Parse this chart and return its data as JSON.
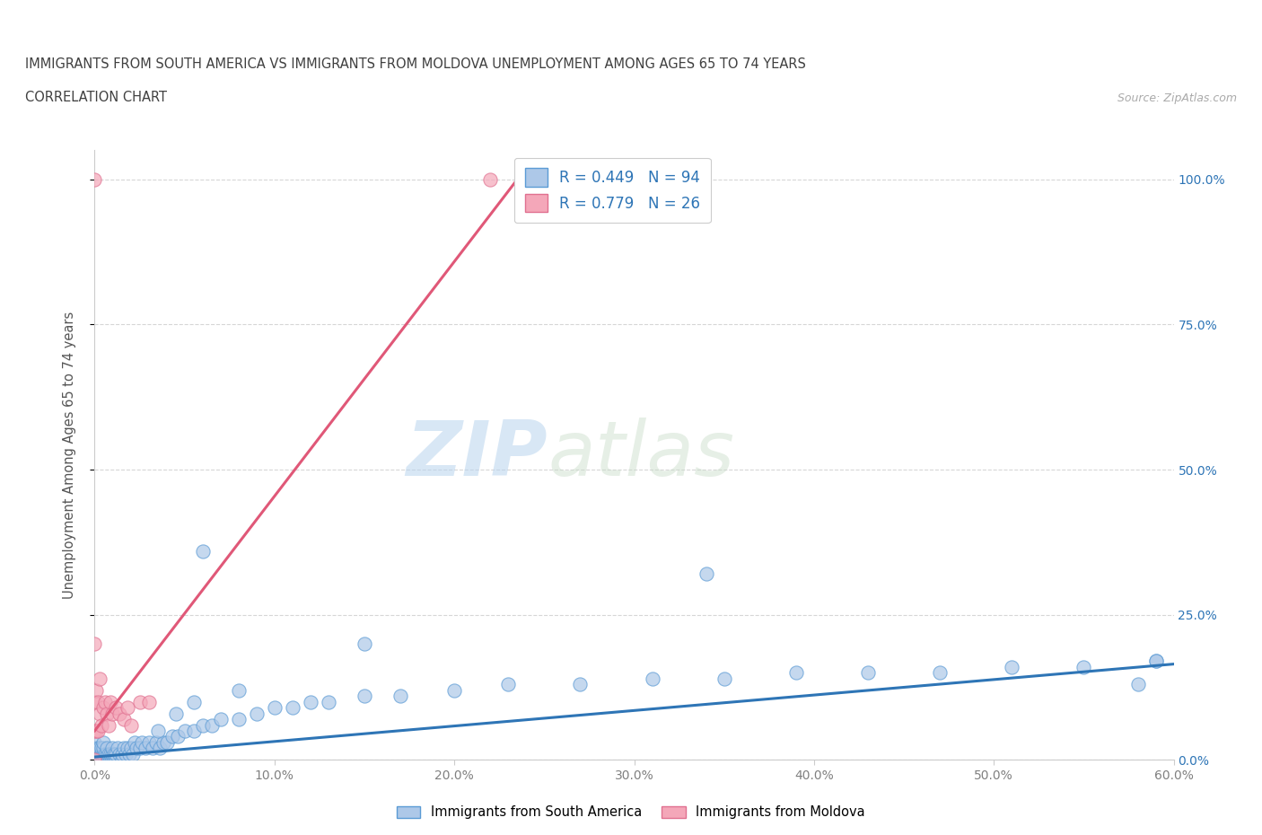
{
  "title_line1": "IMMIGRANTS FROM SOUTH AMERICA VS IMMIGRANTS FROM MOLDOVA UNEMPLOYMENT AMONG AGES 65 TO 74 YEARS",
  "title_line2": "CORRELATION CHART",
  "source": "Source: ZipAtlas.com",
  "ylabel": "Unemployment Among Ages 65 to 74 years",
  "xlim": [
    0.0,
    0.6
  ],
  "ylim": [
    0.0,
    1.05
  ],
  "xticks": [
    0.0,
    0.1,
    0.2,
    0.3,
    0.4,
    0.5,
    0.6
  ],
  "xticklabels": [
    "0.0%",
    "10.0%",
    "20.0%",
    "30.0%",
    "40.0%",
    "50.0%",
    "60.0%"
  ],
  "ytick_positions": [
    0.0,
    0.25,
    0.5,
    0.75,
    1.0
  ],
  "yticklabels_right": [
    "0.0%",
    "25.0%",
    "50.0%",
    "75.0%",
    "100.0%"
  ],
  "blue_color": "#adc8e8",
  "blue_edge_color": "#5b9bd5",
  "blue_line_color": "#2e75b6",
  "pink_color": "#f4a7b9",
  "pink_edge_color": "#e07090",
  "pink_line_color": "#e05878",
  "stat_label_color": "#2e75b6",
  "R_blue": 0.449,
  "N_blue": 94,
  "R_pink": 0.779,
  "N_pink": 26,
  "legend_label_blue": "Immigrants from South America",
  "legend_label_pink": "Immigrants from Moldova",
  "watermark_zip": "ZIP",
  "watermark_atlas": "atlas",
  "background_color": "#ffffff",
  "grid_color": "#cccccc",
  "title_color": "#404040",
  "axis_label_color": "#555555",
  "tick_label_color": "#808080",
  "blue_scatter_x": [
    0.0,
    0.0,
    0.0,
    0.0,
    0.0,
    0.0,
    0.0,
    0.001,
    0.001,
    0.002,
    0.002,
    0.002,
    0.003,
    0.003,
    0.003,
    0.004,
    0.004,
    0.004,
    0.005,
    0.005,
    0.005,
    0.005,
    0.006,
    0.006,
    0.007,
    0.007,
    0.007,
    0.008,
    0.008,
    0.009,
    0.009,
    0.01,
    0.01,
    0.01,
    0.011,
    0.011,
    0.012,
    0.012,
    0.013,
    0.014,
    0.015,
    0.015,
    0.016,
    0.017,
    0.018,
    0.019,
    0.02,
    0.021,
    0.022,
    0.023,
    0.025,
    0.026,
    0.028,
    0.03,
    0.032,
    0.034,
    0.036,
    0.038,
    0.04,
    0.043,
    0.046,
    0.05,
    0.055,
    0.06,
    0.065,
    0.07,
    0.08,
    0.09,
    0.1,
    0.11,
    0.12,
    0.13,
    0.15,
    0.17,
    0.2,
    0.23,
    0.27,
    0.31,
    0.35,
    0.39,
    0.43,
    0.47,
    0.51,
    0.55,
    0.59,
    0.06,
    0.15,
    0.34,
    0.59,
    0.58,
    0.035,
    0.045,
    0.055,
    0.08
  ],
  "blue_scatter_y": [
    0.0,
    0.0,
    0.0,
    0.0,
    0.01,
    0.02,
    0.03,
    0.0,
    0.01,
    0.0,
    0.01,
    0.02,
    0.0,
    0.01,
    0.02,
    0.0,
    0.01,
    0.02,
    0.0,
    0.01,
    0.02,
    0.03,
    0.0,
    0.01,
    0.0,
    0.01,
    0.02,
    0.0,
    0.01,
    0.0,
    0.01,
    0.0,
    0.01,
    0.02,
    0.0,
    0.01,
    0.0,
    0.01,
    0.02,
    0.01,
    0.0,
    0.01,
    0.02,
    0.01,
    0.02,
    0.01,
    0.02,
    0.01,
    0.03,
    0.02,
    0.02,
    0.03,
    0.02,
    0.03,
    0.02,
    0.03,
    0.02,
    0.03,
    0.03,
    0.04,
    0.04,
    0.05,
    0.05,
    0.06,
    0.06,
    0.07,
    0.07,
    0.08,
    0.09,
    0.09,
    0.1,
    0.1,
    0.11,
    0.11,
    0.12,
    0.13,
    0.13,
    0.14,
    0.14,
    0.15,
    0.15,
    0.15,
    0.16,
    0.16,
    0.17,
    0.36,
    0.2,
    0.32,
    0.17,
    0.13,
    0.05,
    0.08,
    0.1,
    0.12
  ],
  "pink_scatter_x": [
    0.0,
    0.22,
    0.0,
    0.0,
    0.0,
    0.0,
    0.001,
    0.001,
    0.002,
    0.002,
    0.003,
    0.003,
    0.004,
    0.005,
    0.006,
    0.007,
    0.008,
    0.009,
    0.01,
    0.012,
    0.014,
    0.016,
    0.018,
    0.02,
    0.025,
    0.03
  ],
  "pink_scatter_y": [
    1.0,
    1.0,
    0.2,
    0.1,
    0.05,
    0.0,
    0.05,
    0.12,
    0.05,
    0.1,
    0.08,
    0.14,
    0.06,
    0.09,
    0.1,
    0.08,
    0.06,
    0.1,
    0.08,
    0.09,
    0.08,
    0.07,
    0.09,
    0.06,
    0.1,
    0.1
  ],
  "blue_trend_x": [
    0.0,
    0.6
  ],
  "blue_trend_y": [
    0.005,
    0.165
  ],
  "pink_trend_x": [
    0.0,
    0.24
  ],
  "pink_trend_y": [
    0.05,
    1.02
  ]
}
